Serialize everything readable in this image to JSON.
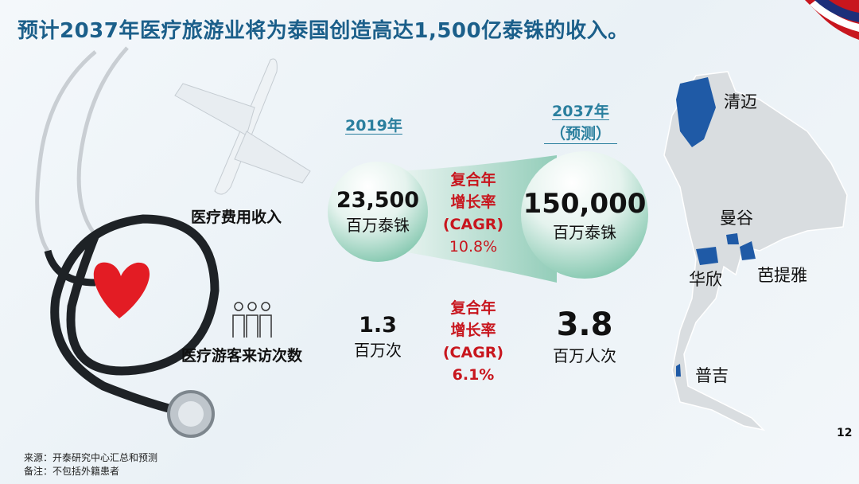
{
  "title": "预计2037年医疗旅游业将为泰国创造高达1,500亿泰铢的收入。",
  "columns": {
    "year_2019": "2019年",
    "year_2037": "2037年",
    "year_2037_note": "（预测）"
  },
  "rows": [
    {
      "label": "医疗费用收入",
      "value_2019": "23,500",
      "unit_2019": "百万泰铢",
      "cagr_line1": "复合年",
      "cagr_line2": "增长率",
      "cagr_line3": "(CAGR)",
      "cagr_value": "10.8%",
      "value_2037": "150,000",
      "unit_2037": "百万泰铢"
    },
    {
      "label": "医疗游客来访次数",
      "icon": "people-icon",
      "value_2019": "1.3",
      "unit_2019": "百万次",
      "cagr_line1": "复合年",
      "cagr_line2": "增长率",
      "cagr_line3": "(CAGR)",
      "cagr_value": "6.1%",
      "value_2037": "3.8",
      "unit_2037": "百万人次"
    }
  ],
  "map": {
    "cities": [
      "清迈",
      "曼谷",
      "华欣",
      "芭提雅",
      "普吉"
    ],
    "highlight_color": "#1f5aa6",
    "base_color": "#d9dde0"
  },
  "page_number": "12",
  "footer": {
    "source": "来源：开泰研究中心汇总和预测",
    "note": "备注：不包括外籍患者"
  },
  "colors": {
    "title": "#1b5f8a",
    "cagr": "#c8161e",
    "year": "#2a7f9e"
  }
}
